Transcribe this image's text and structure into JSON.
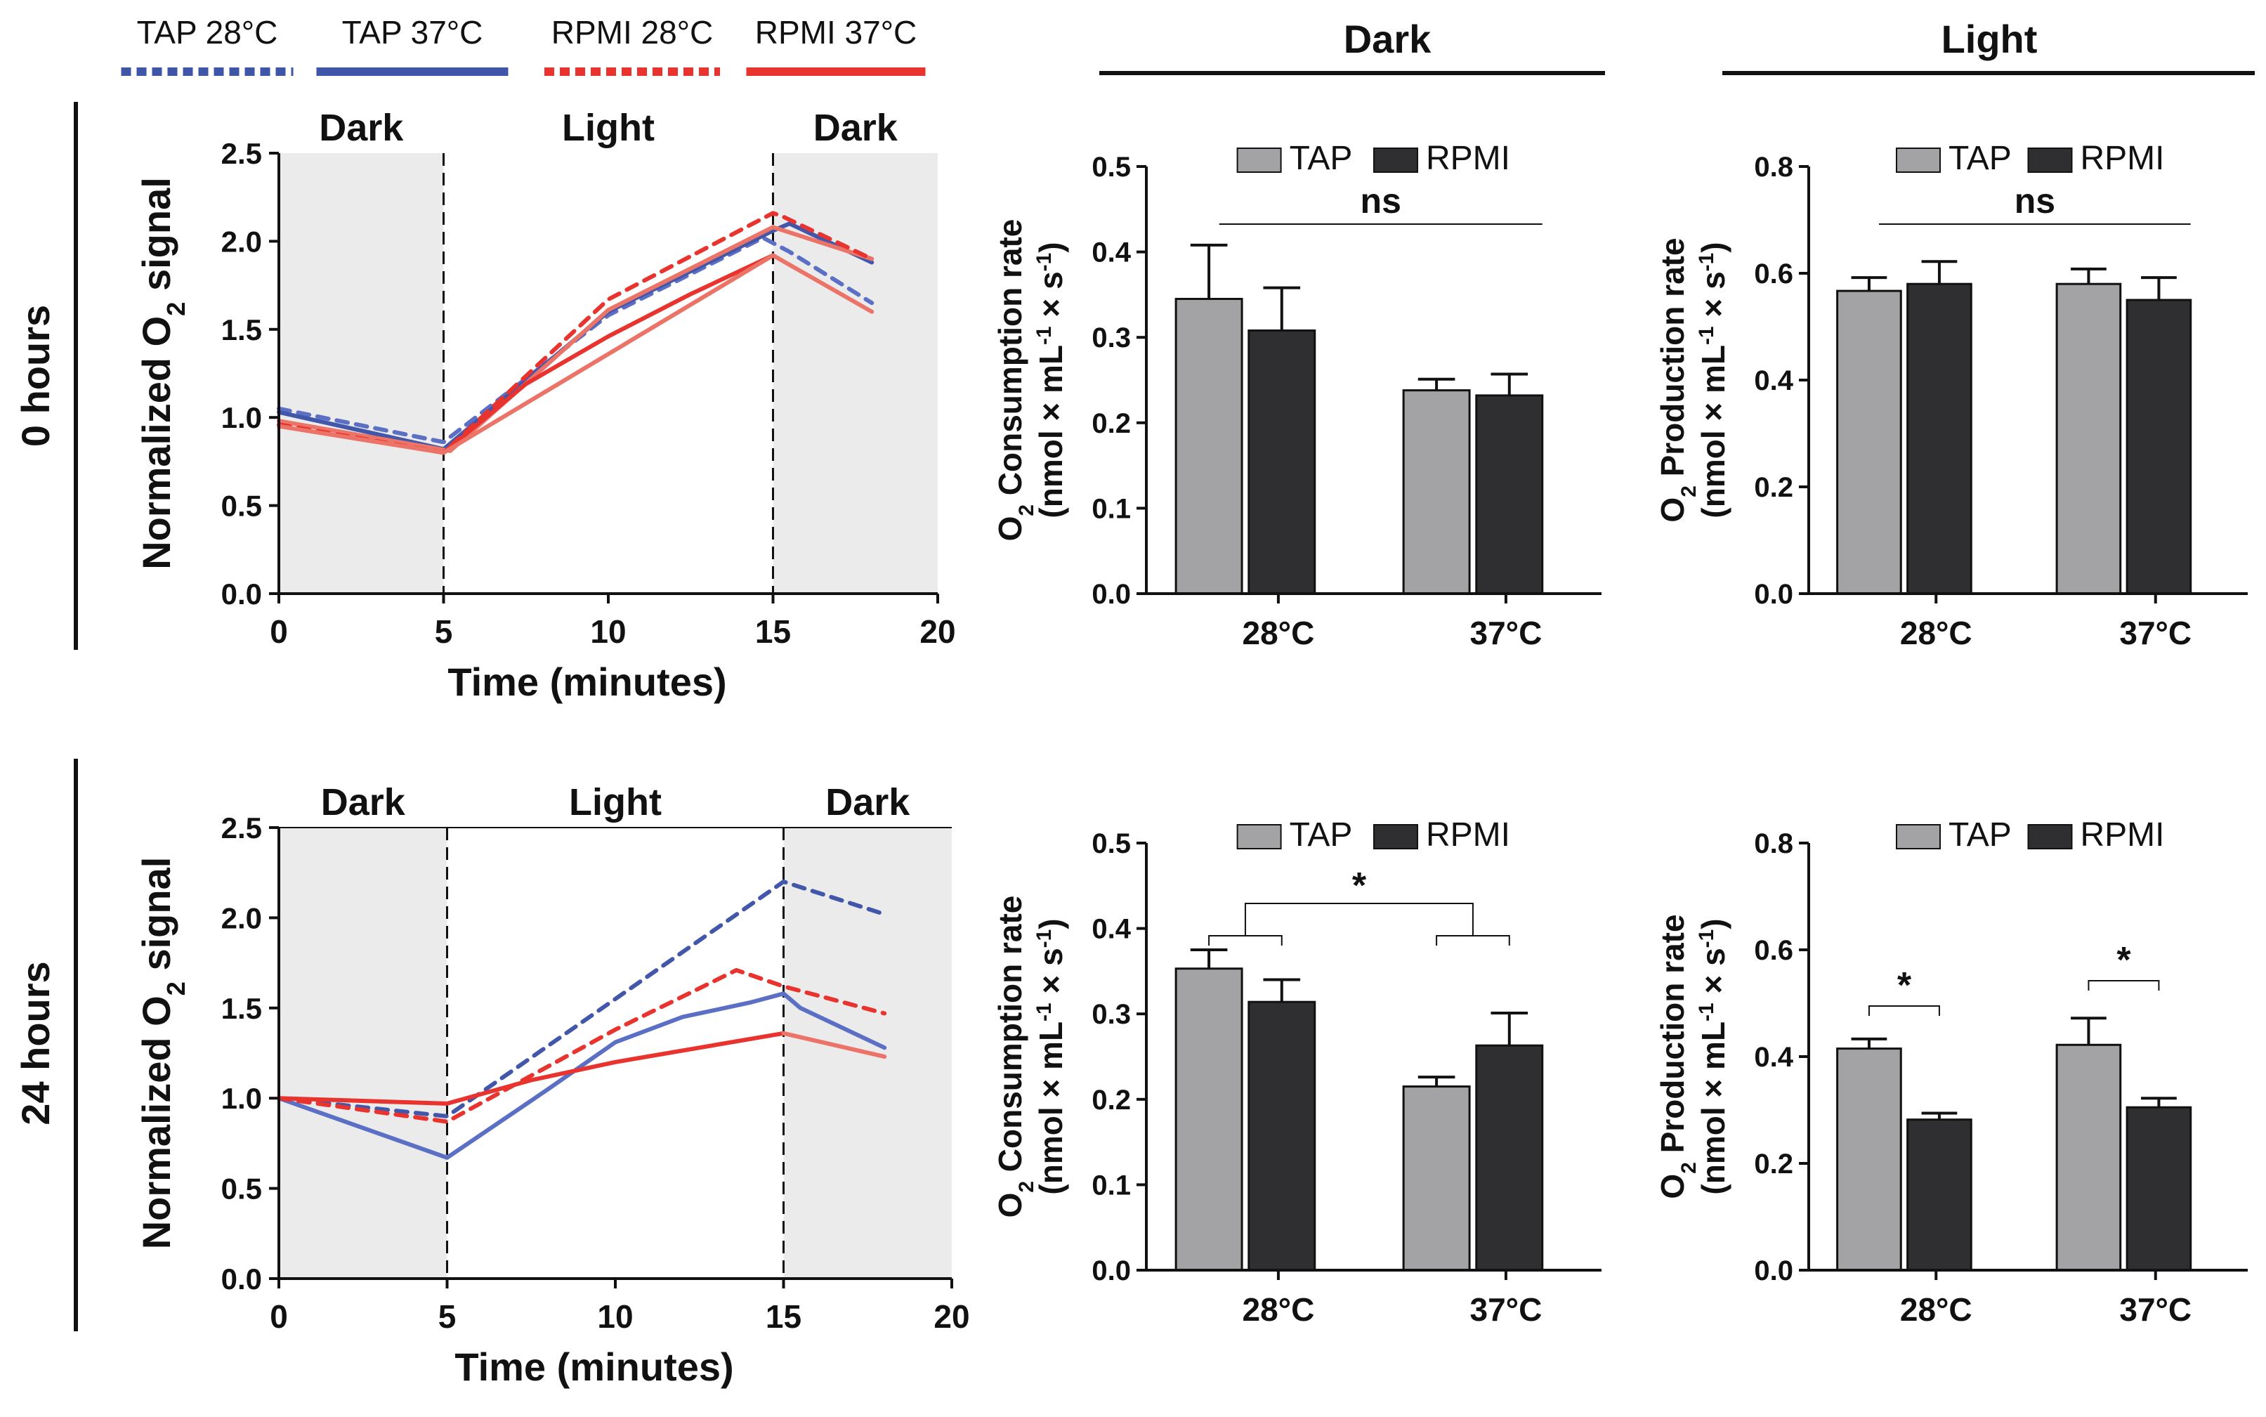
{
  "colors": {
    "tap": "#4257aa",
    "tap_28": "#5b6fc4",
    "rpmi": "#e8332e",
    "rpmi_28": "#ec7367",
    "bar_tap": "#a3a3a5",
    "bar_rpmi": "#2f2f31",
    "dark_phase_bg": "#ebebeb"
  },
  "legend": {
    "items": [
      {
        "label": "TAP 28°C",
        "color": "#3f55a8",
        "dashed": true
      },
      {
        "label": "TAP 37°C",
        "color": "#3f55a8",
        "dashed": false
      },
      {
        "label": "RPMI 28°C",
        "color": "#e8332e",
        "dashed": true
      },
      {
        "label": "RPMI 37°C",
        "color": "#e8332e",
        "dashed": false
      }
    ]
  },
  "column_headers": {
    "dark": "Dark",
    "light": "Light"
  },
  "row_labels": {
    "row0": "0 hours",
    "row1": "24 hours"
  },
  "chart_data": [
    {
      "id": "trace_0h",
      "type": "line",
      "phase_labels": [
        "Dark",
        "Light",
        "Dark"
      ],
      "phase_boundaries": [
        5,
        15
      ],
      "xlabel": "Time (minutes)",
      "ylabel": "Normalized O2 signal",
      "xlim": [
        0,
        20
      ],
      "ylim": [
        0,
        2.5
      ],
      "xticks": [
        "0",
        "5",
        "10",
        "15",
        "20"
      ],
      "yticks": [
        "0.0",
        "0.5",
        "1.0",
        "1.5",
        "2.0",
        "2.5"
      ],
      "series": [
        {
          "name": "TAP 28°C",
          "color": "#5b6fc4",
          "dashed": true,
          "x": [
            0,
            5,
            10,
            14.7,
            15.5,
            18
          ],
          "y": [
            1.05,
            0.86,
            1.58,
            2.02,
            1.94,
            1.65
          ]
        },
        {
          "name": "TAP 37°C",
          "color": "#4257aa",
          "dashed": false,
          "x": [
            0,
            5,
            10,
            15,
            15.5,
            18
          ],
          "y": [
            1.03,
            0.82,
            1.6,
            2.06,
            2.1,
            1.88
          ]
        },
        {
          "name": "RPMI 28°C",
          "color": "#ec7367",
          "dashed": false,
          "x": [
            0,
            5.2,
            10,
            15,
            18
          ],
          "y": [
            0.98,
            0.81,
            1.61,
            2.08,
            1.9
          ]
        },
        {
          "name": "RPMI 28°C dashed",
          "color": "#e8332e",
          "dashed": true,
          "x": [
            0,
            5,
            10,
            15,
            15.3,
            18
          ],
          "y": [
            0.96,
            0.8,
            1.67,
            2.16,
            2.14,
            1.9
          ]
        },
        {
          "name": "RPMI 37°C",
          "color": "#e8332e",
          "dashed": false,
          "x": [
            5,
            7.5,
            10,
            12.5,
            15
          ],
          "y": [
            0.8,
            1.19,
            1.46,
            1.7,
            1.92
          ]
        },
        {
          "name": "RPMI 37°C dark",
          "color": "#ec7367",
          "dashed": false,
          "x": [
            0,
            5,
            15,
            18
          ],
          "y": [
            0.95,
            0.8,
            1.92,
            1.6
          ]
        }
      ]
    },
    {
      "id": "trace_24h",
      "type": "line",
      "phase_labels": [
        "Dark",
        "Light",
        "Dark"
      ],
      "phase_boundaries": [
        5,
        15
      ],
      "xlabel": "Time (minutes)",
      "ylabel": "Normalized O2 signal",
      "xlim": [
        0,
        20
      ],
      "ylim": [
        0,
        2.5
      ],
      "xticks": [
        "0",
        "5",
        "10",
        "15",
        "20"
      ],
      "yticks": [
        "0.0",
        "0.5",
        "1.0",
        "1.5",
        "2.0",
        "2.5"
      ],
      "series": [
        {
          "name": "TAP 28°C",
          "color": "#4257aa",
          "dashed": true,
          "x": [
            0,
            5,
            15,
            18
          ],
          "y": [
            1.0,
            0.9,
            2.2,
            2.02
          ]
        },
        {
          "name": "TAP 37°C",
          "color": "#5b6fc4",
          "dashed": false,
          "x": [
            0,
            5,
            8,
            10,
            12,
            14,
            15,
            15.5,
            18
          ],
          "y": [
            1.0,
            0.67,
            1.05,
            1.31,
            1.45,
            1.53,
            1.58,
            1.5,
            1.28
          ]
        },
        {
          "name": "RPMI 28°C",
          "color": "#e8332e",
          "dashed": true,
          "x": [
            0,
            5,
            10,
            13.6,
            15,
            18
          ],
          "y": [
            1.0,
            0.87,
            1.38,
            1.71,
            1.62,
            1.47
          ]
        },
        {
          "name": "RPMI 37°C",
          "color": "#e8332e",
          "dashed": false,
          "x": [
            0,
            5,
            7.5,
            10,
            12.5,
            15
          ],
          "y": [
            1.0,
            0.97,
            1.1,
            1.2,
            1.28,
            1.36
          ]
        },
        {
          "name": "RPMI 37°C dark",
          "color": "#ec7367",
          "dashed": false,
          "x": [
            15,
            18
          ],
          "y": [
            1.36,
            1.23
          ]
        }
      ]
    },
    {
      "id": "consumption_0h",
      "type": "bar",
      "ylabel_lines": [
        "O2 Consumption rate",
        "(nmol × mL-1 × s-1)"
      ],
      "categories": [
        "28°C",
        "37°C"
      ],
      "ylim": [
        0,
        0.5
      ],
      "yticks": [
        "0.0",
        "0.1",
        "0.2",
        "0.3",
        "0.4",
        "0.5"
      ],
      "legend": [
        "TAP",
        "RPMI"
      ],
      "series": [
        {
          "name": "TAP",
          "values": [
            0.345,
            0.238
          ],
          "errors": [
            0.063,
            0.013
          ]
        },
        {
          "name": "RPMI",
          "values": [
            0.308,
            0.232
          ],
          "errors": [
            0.05,
            0.025
          ]
        }
      ],
      "annotations": [
        {
          "text": "ns",
          "type": "span"
        }
      ]
    },
    {
      "id": "production_0h",
      "type": "bar",
      "ylabel_lines": [
        "O2 Production rate",
        "(nmol × mL-1 × s-1)"
      ],
      "categories": [
        "28°C",
        "37°C"
      ],
      "ylim": [
        0,
        0.8
      ],
      "yticks": [
        "0.0",
        "0.2",
        "0.4",
        "0.6",
        "0.8"
      ],
      "legend": [
        "TAP",
        "RPMI"
      ],
      "series": [
        {
          "name": "TAP",
          "values": [
            0.567,
            0.58
          ],
          "errors": [
            0.025,
            0.028
          ]
        },
        {
          "name": "RPMI",
          "values": [
            0.58,
            0.55
          ],
          "errors": [
            0.042,
            0.042
          ]
        }
      ],
      "annotations": [
        {
          "text": "ns",
          "type": "span"
        }
      ]
    },
    {
      "id": "consumption_24h",
      "type": "bar",
      "ylabel_lines": [
        "O2 Consumption rate",
        "(nmol × mL-1 × s-1)"
      ],
      "categories": [
        "28°C",
        "37°C"
      ],
      "ylim": [
        0,
        0.5
      ],
      "yticks": [
        "0.0",
        "0.1",
        "0.2",
        "0.3",
        "0.4",
        "0.5"
      ],
      "legend": [
        "TAP",
        "RPMI"
      ],
      "series": [
        {
          "name": "TAP",
          "values": [
            0.353,
            0.215
          ],
          "errors": [
            0.022,
            0.011
          ]
        },
        {
          "name": "RPMI",
          "values": [
            0.314,
            0.263
          ],
          "errors": [
            0.026,
            0.038
          ]
        }
      ],
      "annotations": [
        {
          "text": "*",
          "type": "group-bracket"
        }
      ]
    },
    {
      "id": "production_24h",
      "type": "bar",
      "ylabel_lines": [
        "O2 Production rate",
        "(nmol × mL-1 × s-1)"
      ],
      "categories": [
        "28°C",
        "37°C"
      ],
      "ylim": [
        0,
        0.8
      ],
      "yticks": [
        "0.0",
        "0.2",
        "0.4",
        "0.6",
        "0.8"
      ],
      "legend": [
        "TAP",
        "RPMI"
      ],
      "series": [
        {
          "name": "TAP",
          "values": [
            0.415,
            0.422
          ],
          "errors": [
            0.018,
            0.05
          ]
        },
        {
          "name": "RPMI",
          "values": [
            0.282,
            0.305
          ],
          "errors": [
            0.012,
            0.017
          ]
        }
      ],
      "annotations": [
        {
          "text": "*",
          "type": "pair-bracket"
        },
        {
          "text": "*",
          "type": "pair-bracket"
        }
      ]
    }
  ]
}
